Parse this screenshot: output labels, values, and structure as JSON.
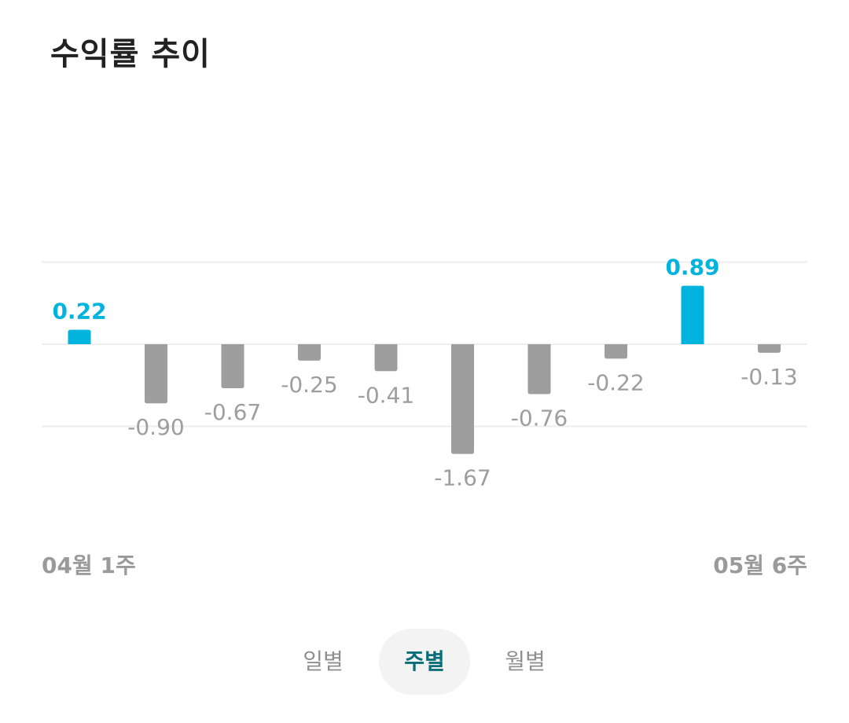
{
  "title": "수익률 추이",
  "colors": {
    "positive": "#00b4dd",
    "negative": "#9e9e9e",
    "grid": "#eeeeee",
    "tab_active_bg": "#f3f3f3",
    "tab_active_text": "#0a6e78"
  },
  "chart_data": {
    "type": "bar",
    "title": "수익률 추이",
    "values": [
      0.22,
      -0.9,
      -0.67,
      -0.25,
      -0.41,
      -1.67,
      -0.76,
      -0.22,
      0.89,
      -0.13
    ],
    "data_labels": [
      "0.22",
      "-0.90",
      "-0.67",
      "-0.25",
      "-0.41",
      "-1.67",
      "-0.76",
      "-0.22",
      "0.89",
      "-0.13"
    ],
    "x_range_labels": [
      "04월 1주",
      "05월 6주"
    ],
    "ylim": [
      -2.5,
      2.5
    ],
    "grid_step": 1.25,
    "grid": true,
    "legend": "none"
  },
  "tabs": [
    {
      "label": "일별",
      "active": false
    },
    {
      "label": "주별",
      "active": true
    },
    {
      "label": "월별",
      "active": false
    }
  ]
}
